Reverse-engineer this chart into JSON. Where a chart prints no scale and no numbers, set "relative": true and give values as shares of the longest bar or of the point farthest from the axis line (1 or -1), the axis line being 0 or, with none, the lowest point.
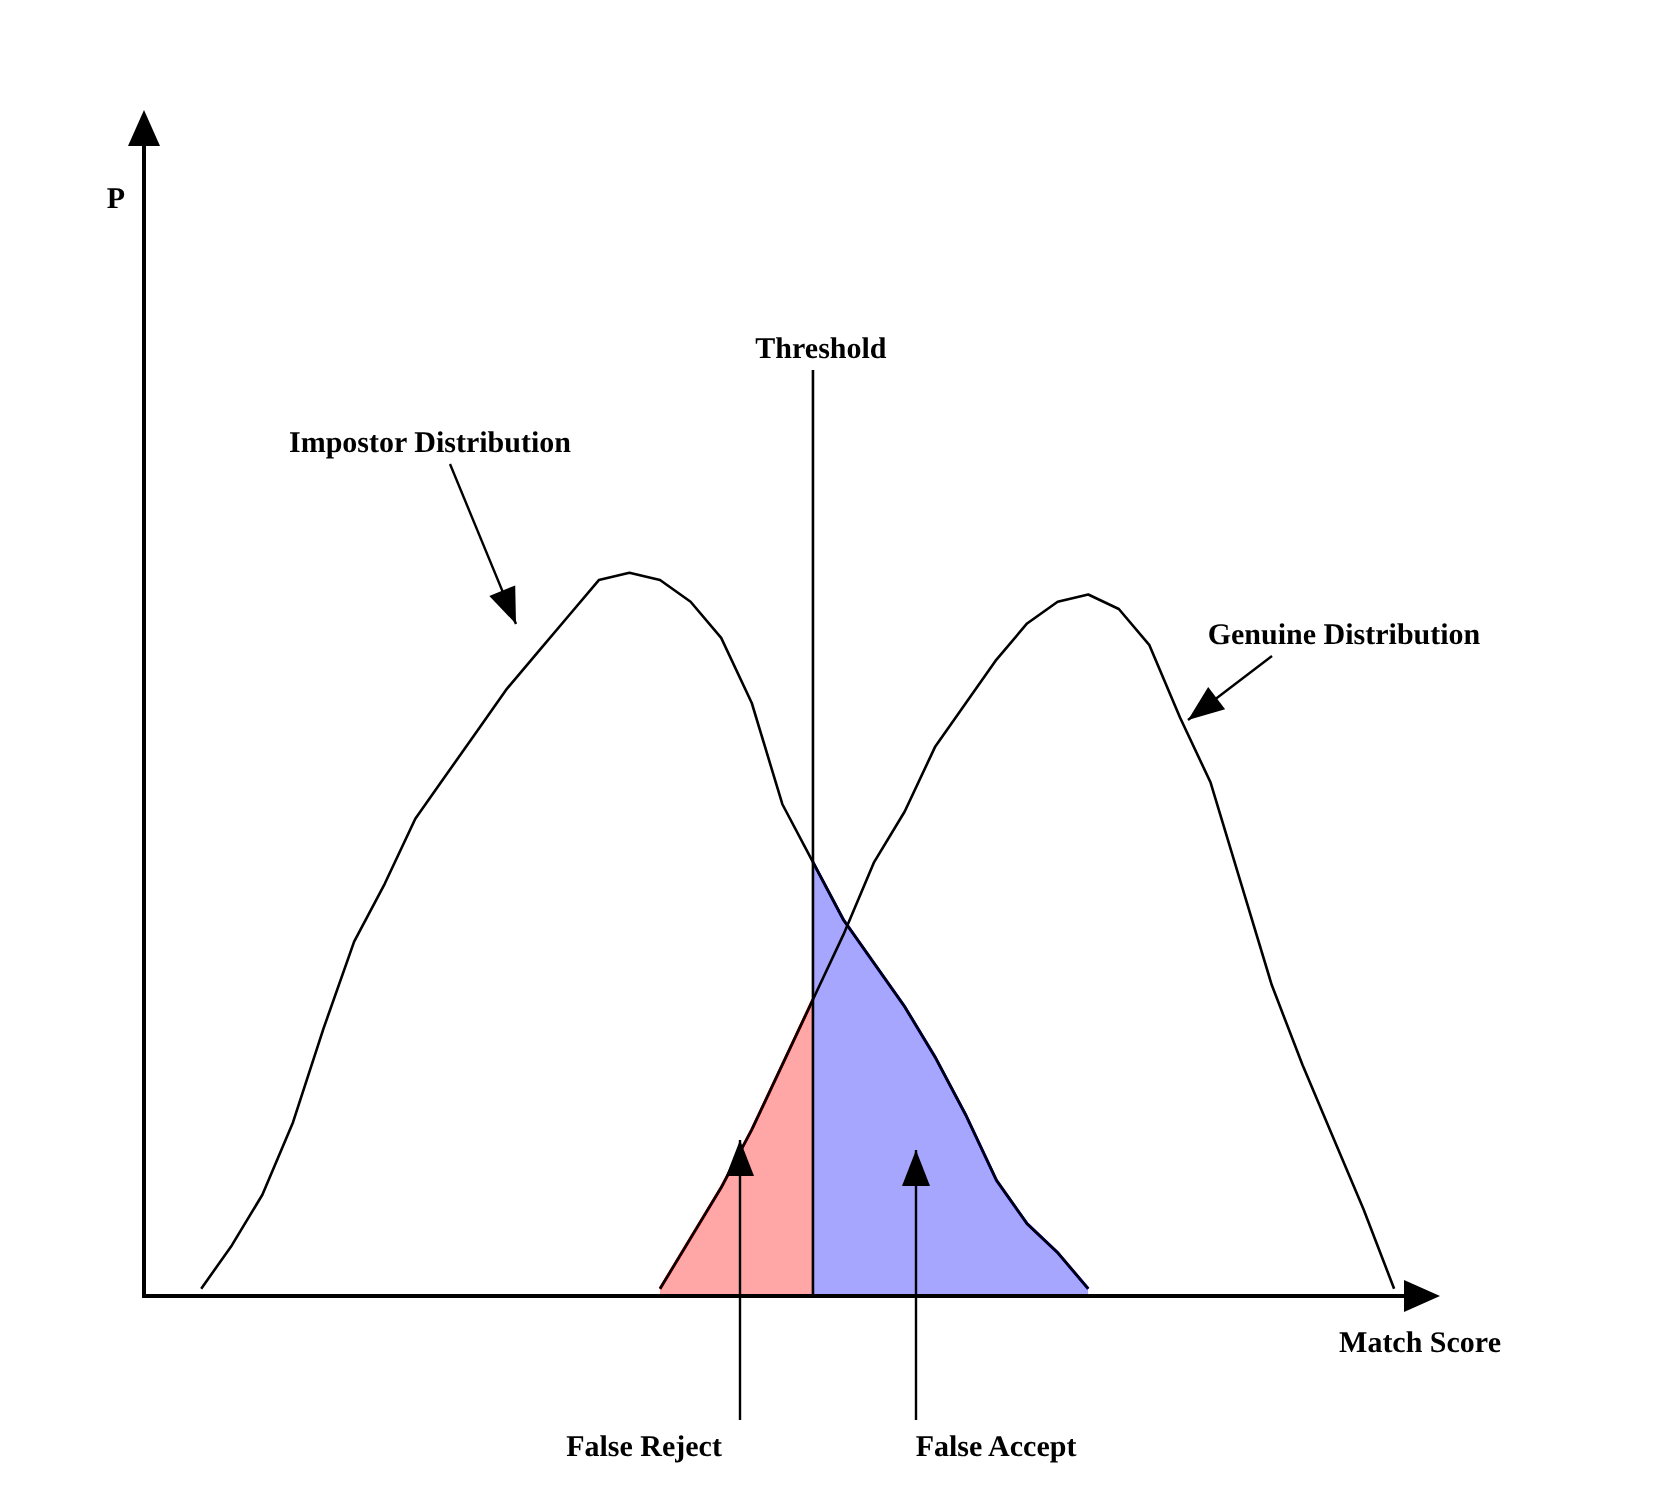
{
  "chart_data": {
    "type": "line",
    "relative": true,
    "xlabel": "Match Score",
    "marker": "none",
    "categories": [
      null,
      null,
      null,
      null,
      null,
      null,
      null,
      null,
      null,
      null,
      null,
      null,
      null,
      null,
      null,
      null,
      null,
      null,
      null,
      null,
      null,
      null,
      null,
      null,
      null,
      null,
      null,
      null,
      null,
      null,
      null,
      null,
      null,
      null,
      null,
      null,
      null,
      null,
      null,
      null
    ],
    "series": [
      {
        "name": "Impostor Distribution",
        "color": "#000000",
        "values": [
          0.01,
          0.07,
          0.14,
          0.24,
          0.37,
          0.49,
          0.57,
          0.66,
          0.72,
          0.78,
          0.84,
          0.89,
          0.94,
          0.99,
          1.0,
          0.99,
          0.96,
          0.91,
          0.82,
          0.68,
          0.6,
          0.52,
          0.46,
          0.4,
          0.33,
          0.25,
          0.16,
          0.1,
          0.06,
          0.01,
          null,
          null,
          null,
          null,
          null,
          null,
          null,
          null,
          null,
          null
        ]
      },
      {
        "name": "Genuine Distribution",
        "color": "#000000",
        "values": [
          null,
          null,
          null,
          null,
          null,
          null,
          null,
          null,
          null,
          null,
          null,
          null,
          null,
          null,
          null,
          0.01,
          0.08,
          0.15,
          0.23,
          0.32,
          0.41,
          0.5,
          0.6,
          0.67,
          0.76,
          0.82,
          0.88,
          0.93,
          0.96,
          0.97,
          0.95,
          0.9,
          0.8,
          0.71,
          0.57,
          0.43,
          0.32,
          0.22,
          0.12,
          0.01
        ]
      },
      {
        "name": "False Reject",
        "type": "area",
        "color": "#ff0000",
        "values": [
          null,
          null,
          null,
          null,
          null,
          null,
          null,
          null,
          null,
          null,
          null,
          null,
          null,
          null,
          null,
          0.01,
          0.08,
          0.15,
          0.23,
          0.32,
          0.41,
          null,
          null,
          null,
          null,
          null,
          null,
          null,
          null,
          null,
          null,
          null,
          null,
          null,
          null,
          null,
          null,
          null,
          null,
          null
        ]
      },
      {
        "name": "False Accept",
        "type": "area",
        "color": "#0000ff",
        "values": [
          null,
          null,
          null,
          null,
          null,
          null,
          null,
          null,
          null,
          null,
          null,
          null,
          null,
          null,
          null,
          null,
          null,
          null,
          null,
          null,
          0.6,
          0.52,
          0.46,
          0.4,
          0.33,
          0.25,
          0.16,
          0.1,
          0.06,
          0.01,
          null,
          null,
          null,
          null,
          null,
          null,
          null,
          null,
          null,
          null
        ]
      }
    ],
    "annotations": [
      "Threshold",
      "P"
    ]
  }
}
